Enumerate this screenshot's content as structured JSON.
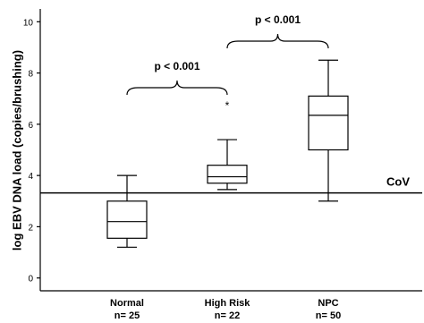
{
  "chart_data": {
    "type": "box",
    "y_label": "log EBV DNA load (copies/brushing)",
    "categories": [
      "Normal",
      "High Risk",
      "NPC"
    ],
    "n_labels": [
      "n= 25",
      "n= 22",
      "n= 50"
    ],
    "boxes": [
      {
        "whislo": 1.2,
        "q1": 1.55,
        "med": 2.2,
        "q3": 3.0,
        "whishi": 4.0,
        "outliers": []
      },
      {
        "whislo": 3.45,
        "q1": 3.7,
        "med": 3.95,
        "q3": 4.4,
        "whishi": 5.4,
        "outliers": [
          6.8
        ]
      },
      {
        "whislo": 3.0,
        "q1": 5.0,
        "med": 6.35,
        "q3": 7.1,
        "whishi": 8.5,
        "outliers": []
      }
    ],
    "ylim": [
      -0.5,
      10.5
    ],
    "yticks": [
      0,
      2,
      4,
      6,
      8,
      10
    ],
    "reference_line": {
      "value": 3.32,
      "label": "CoV"
    },
    "annotations": [
      "p < 0.001",
      "p < 0.001"
    ]
  }
}
